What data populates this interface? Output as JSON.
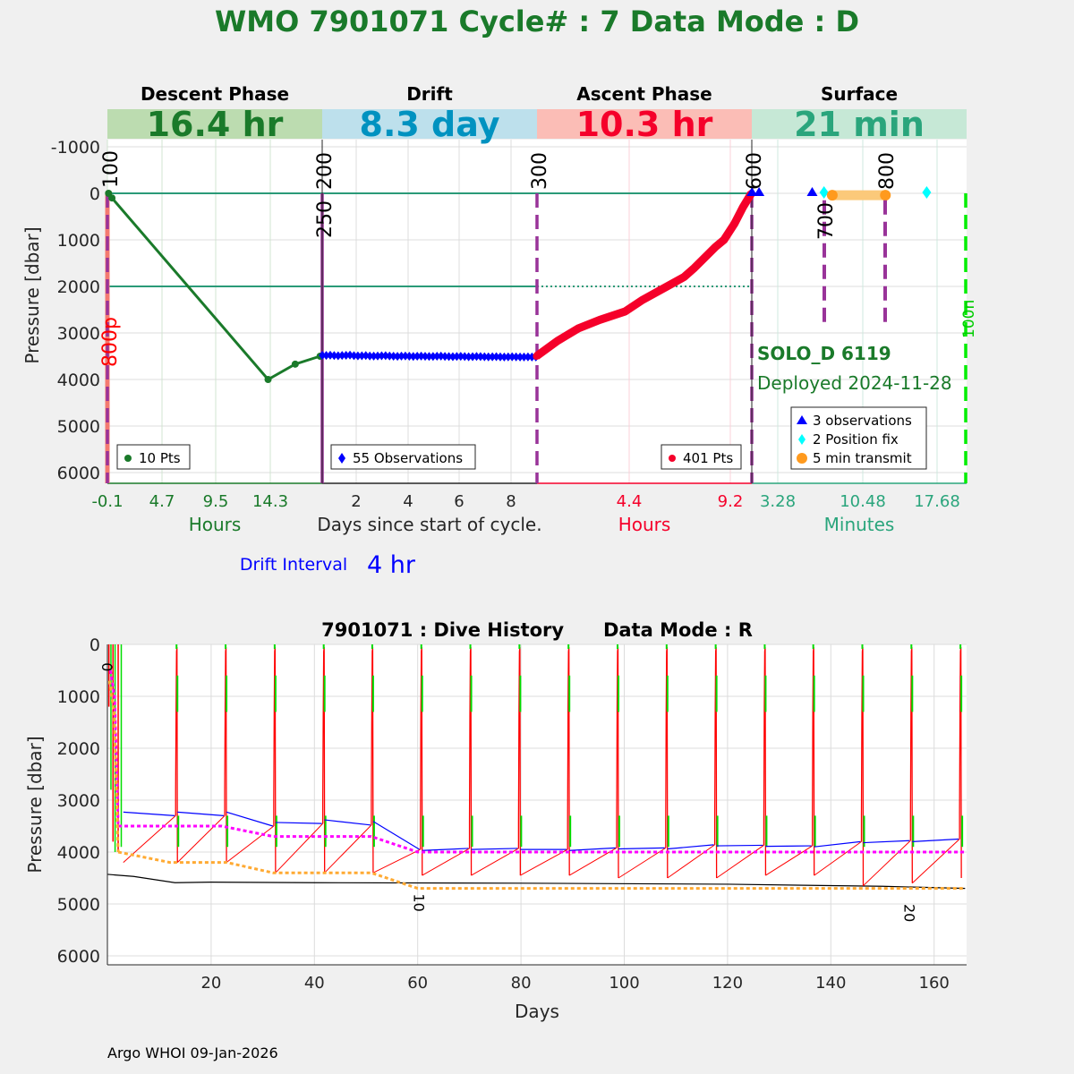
{
  "title": "WMO 7901071    Cycle# : 7    Data Mode : D",
  "chart_data": [
    {
      "type": "line",
      "title": "WMO 7901071    Cycle# : 7    Data Mode : D",
      "ylabel": "Pressure [dbar]",
      "ylim": [
        -1000,
        6200
      ],
      "yticks": [
        "-1000",
        "0",
        "1000",
        "2000",
        "3000",
        "4000",
        "5000",
        "6000"
      ],
      "xlabel": "Days since start of cycle.",
      "phases": [
        {
          "name": "Descent Phase",
          "duration": "16.4 hr",
          "unit": "Hours",
          "ticks": [
            "-0.1",
            "4.7",
            "9.5",
            "14.3"
          ],
          "legend": "10 Pts",
          "band_color": "#bcdcb0",
          "text_color": "#1a7a2a",
          "points": [
            [
              0,
              0
            ],
            [
              0.3,
              100
            ],
            [
              14.1,
              4000
            ],
            [
              16.5,
              3670
            ],
            [
              18.7,
              3500
            ]
          ]
        },
        {
          "name": "Drift",
          "duration": "8.3 day",
          "unit": "",
          "ticks": [
            "2",
            "4",
            "6",
            "8"
          ],
          "legend": "55 Observations",
          "band_color": "#bde0ec",
          "text_color": "#0092c0",
          "start_day": 0.7,
          "end_day": 9.0,
          "pressures": [
            3480,
            3482,
            3478,
            3485,
            3490,
            3484,
            3480,
            3476,
            3488,
            3492,
            3490,
            3486,
            3495,
            3498,
            3494,
            3490,
            3488,
            3496,
            3500,
            3502,
            3498,
            3495,
            3500,
            3504,
            3500,
            3498,
            3502,
            3506,
            3505,
            3500,
            3498,
            3504,
            3508,
            3510,
            3506,
            3503,
            3508,
            3512,
            3510,
            3506,
            3508,
            3512,
            3515,
            3512,
            3510,
            3514,
            3516,
            3514,
            3512,
            3515,
            3518,
            3516,
            3514,
            3516,
            3518
          ]
        },
        {
          "name": "Ascent Phase",
          "duration": "10.3 hr",
          "unit": "Hours",
          "ticks": [
            "4.4",
            "9.2"
          ],
          "legend": "401 Pts",
          "band_color": "#fbbdb6",
          "text_color": "#f5002a",
          "points": [
            [
              0,
              3500
            ],
            [
              1,
              3170
            ],
            [
              2,
              2900
            ],
            [
              3,
              2720
            ],
            [
              4.2,
              2540
            ],
            [
              5,
              2300
            ],
            [
              6.2,
              2000
            ],
            [
              7,
              1800
            ],
            [
              7.5,
              1600
            ],
            [
              8.5,
              1150
            ],
            [
              8.9,
              1000
            ],
            [
              9.4,
              650
            ],
            [
              9.8,
              300
            ],
            [
              10.2,
              0
            ]
          ]
        },
        {
          "name": "Surface",
          "duration": "21 min",
          "unit": "Minutes",
          "ticks": [
            "3.28",
            "10.48",
            "17.68"
          ],
          "legend": [
            "3 observations",
            "2 Position fix",
            "5 min transmit"
          ],
          "band_color": "#c6e8d6",
          "text_color": "#2aa57c",
          "observations_min": [
            1.1,
            1.7,
            6.2
          ],
          "position_fix_min": [
            7.2,
            15.9
          ],
          "transmit_min": [
            7.9,
            12.4
          ]
        }
      ],
      "markers": {
        "m100": "100",
        "m250": "250",
        "m200": "200",
        "m300": "300",
        "m600": "600",
        "m700": "700",
        "m800": "800",
        "m800p": "800p",
        "m100n": "100n"
      },
      "float_name": "SOLO_D 6119",
      "deployed": "Deployed 2024-11-28",
      "drift_interval_label": "Drift Interval",
      "drift_interval_value": "4 hr"
    },
    {
      "type": "line",
      "title": "7901071 : Dive History      Data Mode : R",
      "xlabel": "Days",
      "ylabel": "Pressure [dbar]",
      "xlim": [
        0,
        166
      ],
      "ylim": [
        0,
        6170
      ],
      "xticks": [
        "20",
        "40",
        "60",
        "80",
        "100",
        "120",
        "140",
        "160"
      ],
      "yticks": [
        "0",
        "1000",
        "2000",
        "3000",
        "4000",
        "5000",
        "6000"
      ],
      "cycle_labels": [
        {
          "text": "0",
          "day": 0.3,
          "p": 350
        },
        {
          "text": "10",
          "day": 60.7,
          "p": 4800
        },
        {
          "text": "20",
          "day": 155.6,
          "p": 5000
        }
      ],
      "cycles": [
        {
          "day": 13.3,
          "drift": 3300,
          "max": 4200
        },
        {
          "day": 22.8,
          "drift": 3300,
          "max": 4200
        },
        {
          "day": 32.3,
          "drift": 3500,
          "max": 4400
        },
        {
          "day": 41.8,
          "drift": 3450,
          "max": 4400
        },
        {
          "day": 51.2,
          "drift": 3480,
          "max": 4400
        },
        {
          "day": 60.7,
          "drift": 3950,
          "max": 4450
        },
        {
          "day": 70.2,
          "drift": 3930,
          "max": 4450
        },
        {
          "day": 79.7,
          "drift": 3930,
          "max": 4450
        },
        {
          "day": 89.2,
          "drift": 3950,
          "max": 4450
        },
        {
          "day": 98.7,
          "drift": 3920,
          "max": 4500
        },
        {
          "day": 108.2,
          "drift": 3920,
          "max": 4500
        },
        {
          "day": 117.7,
          "drift": 3860,
          "max": 4500
        },
        {
          "day": 127.2,
          "drift": 3870,
          "max": 4450
        },
        {
          "day": 136.6,
          "drift": 3880,
          "max": 4450
        },
        {
          "day": 146.1,
          "drift": 3800,
          "max": 4650
        },
        {
          "day": 155.6,
          "drift": 3780,
          "max": 4600
        },
        {
          "day": 165.1,
          "drift": 3750,
          "max": 4500
        }
      ],
      "park_pressure": [
        [
          2,
          3500
        ],
        [
          22,
          3500
        ],
        [
          32,
          3700
        ],
        [
          51,
          3700
        ],
        [
          60,
          4000
        ],
        [
          166,
          4000
        ]
      ],
      "profile_pressure": [
        [
          2,
          4000
        ],
        [
          12,
          4200
        ],
        [
          23,
          4200
        ],
        [
          32,
          4400
        ],
        [
          51,
          4400
        ],
        [
          60,
          4700
        ],
        [
          166,
          4700
        ]
      ],
      "bathymetry": [
        [
          0,
          4430
        ],
        [
          5,
          4470
        ],
        [
          13,
          4590
        ],
        [
          20,
          4580
        ],
        [
          40,
          4590
        ],
        [
          80,
          4600
        ],
        [
          120,
          4620
        ],
        [
          150,
          4660
        ],
        [
          166,
          4700
        ]
      ]
    }
  ],
  "footer": "Argo WHOI 09-Jan-2026"
}
